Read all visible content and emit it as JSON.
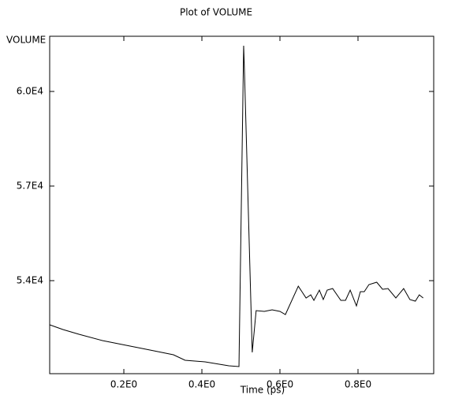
{
  "chart_data": {
    "type": "line",
    "title": "Plot of VOLUME",
    "y_label": "VOLUME",
    "x_label": "Time (ps)",
    "x": [
      0.01,
      0.044,
      0.085,
      0.145,
      0.206,
      0.267,
      0.327,
      0.357,
      0.408,
      0.469,
      0.495,
      0.507,
      0.509,
      0.529,
      0.539,
      0.56,
      0.58,
      0.6,
      0.614,
      0.647,
      0.667,
      0.679,
      0.687,
      0.701,
      0.711,
      0.721,
      0.735,
      0.756,
      0.768,
      0.78,
      0.796,
      0.806,
      0.816,
      0.828,
      0.848,
      0.863,
      0.877,
      0.897,
      0.917,
      0.933,
      0.947,
      0.957,
      0.967
    ],
    "series": [
      {
        "color": "#000000",
        "values": [
          52600,
          52450,
          52300,
          52100,
          51950,
          51800,
          51650,
          51475,
          51425,
          51300,
          51275,
          61450,
          60700,
          51725,
          53050,
          53025,
          53075,
          53025,
          52925,
          53825,
          53450,
          53550,
          53375,
          53700,
          53400,
          53700,
          53750,
          53375,
          53375,
          53700,
          53200,
          53650,
          53650,
          53875,
          53950,
          53725,
          53750,
          53450,
          53750,
          53400,
          53350,
          53550,
          53450
        ]
      }
    ],
    "xlim": [
      0.01,
      0.994
    ],
    "ylim": [
      51050,
      61750
    ],
    "xticks": [
      {
        "value": 0.2,
        "label": "0.2E0"
      },
      {
        "value": 0.4,
        "label": "0.4E0"
      },
      {
        "value": 0.6,
        "label": "0.6E0"
      },
      {
        "value": 0.8,
        "label": "0.8E0"
      }
    ],
    "yticks": [
      {
        "value": 54000,
        "label": "5.4E4"
      },
      {
        "value": 57000,
        "label": "5.7E4"
      },
      {
        "value": 60000,
        "label": "6.0E4"
      }
    ]
  }
}
